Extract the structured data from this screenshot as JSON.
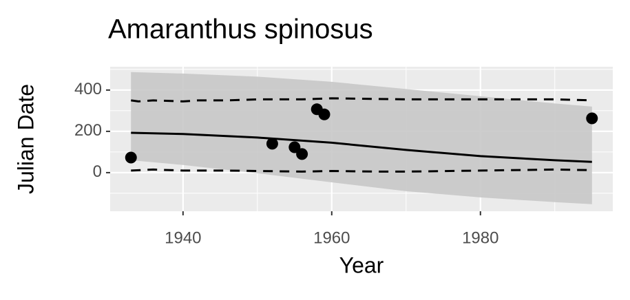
{
  "chart_data": {
    "type": "scatter",
    "title": "Amaranthus spinosus",
    "x_label": "Year",
    "y_label": "Julian Date",
    "xlim": [
      1930.2,
      1997.8
    ],
    "ylim": [
      -187,
      513
    ],
    "xticks": [
      1940,
      1960,
      1980
    ],
    "yticks": [
      0,
      200,
      400
    ],
    "grid": true,
    "points": {
      "color": "#000000",
      "x": [
        1933,
        1952,
        1955,
        1956,
        1958,
        1959,
        1995
      ],
      "y": [
        73,
        140,
        123,
        90,
        307,
        282,
        263
      ]
    },
    "fit": {
      "color": "#000000",
      "x": [
        1933,
        1940,
        1950,
        1960,
        1970,
        1980,
        1990,
        1995
      ],
      "values": [
        193,
        187,
        170,
        145,
        110,
        80,
        60,
        52
      ]
    },
    "ribbon": {
      "color": "#c8c8c8",
      "x": [
        1933,
        1940,
        1950,
        1960,
        1970,
        1980,
        1990,
        1995
      ],
      "lower": [
        60,
        37,
        -3,
        -47,
        -90,
        -120,
        -143,
        -153
      ],
      "upper": [
        487,
        480,
        465,
        440,
        405,
        370,
        335,
        320
      ]
    },
    "quantile_upper": {
      "color": "#000000",
      "x": [
        1933,
        1934,
        1936,
        1940,
        1942,
        1946,
        1950,
        1956,
        1960,
        1970,
        1980,
        1990,
        1995
      ],
      "values": [
        350,
        345,
        350,
        345,
        350,
        350,
        355,
        355,
        360,
        355,
        355,
        355,
        350
      ]
    },
    "quantile_lower": {
      "color": "#000000",
      "x": [
        1933,
        1936,
        1940,
        1946,
        1950,
        1956,
        1960,
        1966,
        1970,
        1980,
        1990,
        1995
      ],
      "values": [
        10,
        15,
        10,
        10,
        8,
        5,
        8,
        5,
        5,
        10,
        15,
        12
      ]
    }
  }
}
